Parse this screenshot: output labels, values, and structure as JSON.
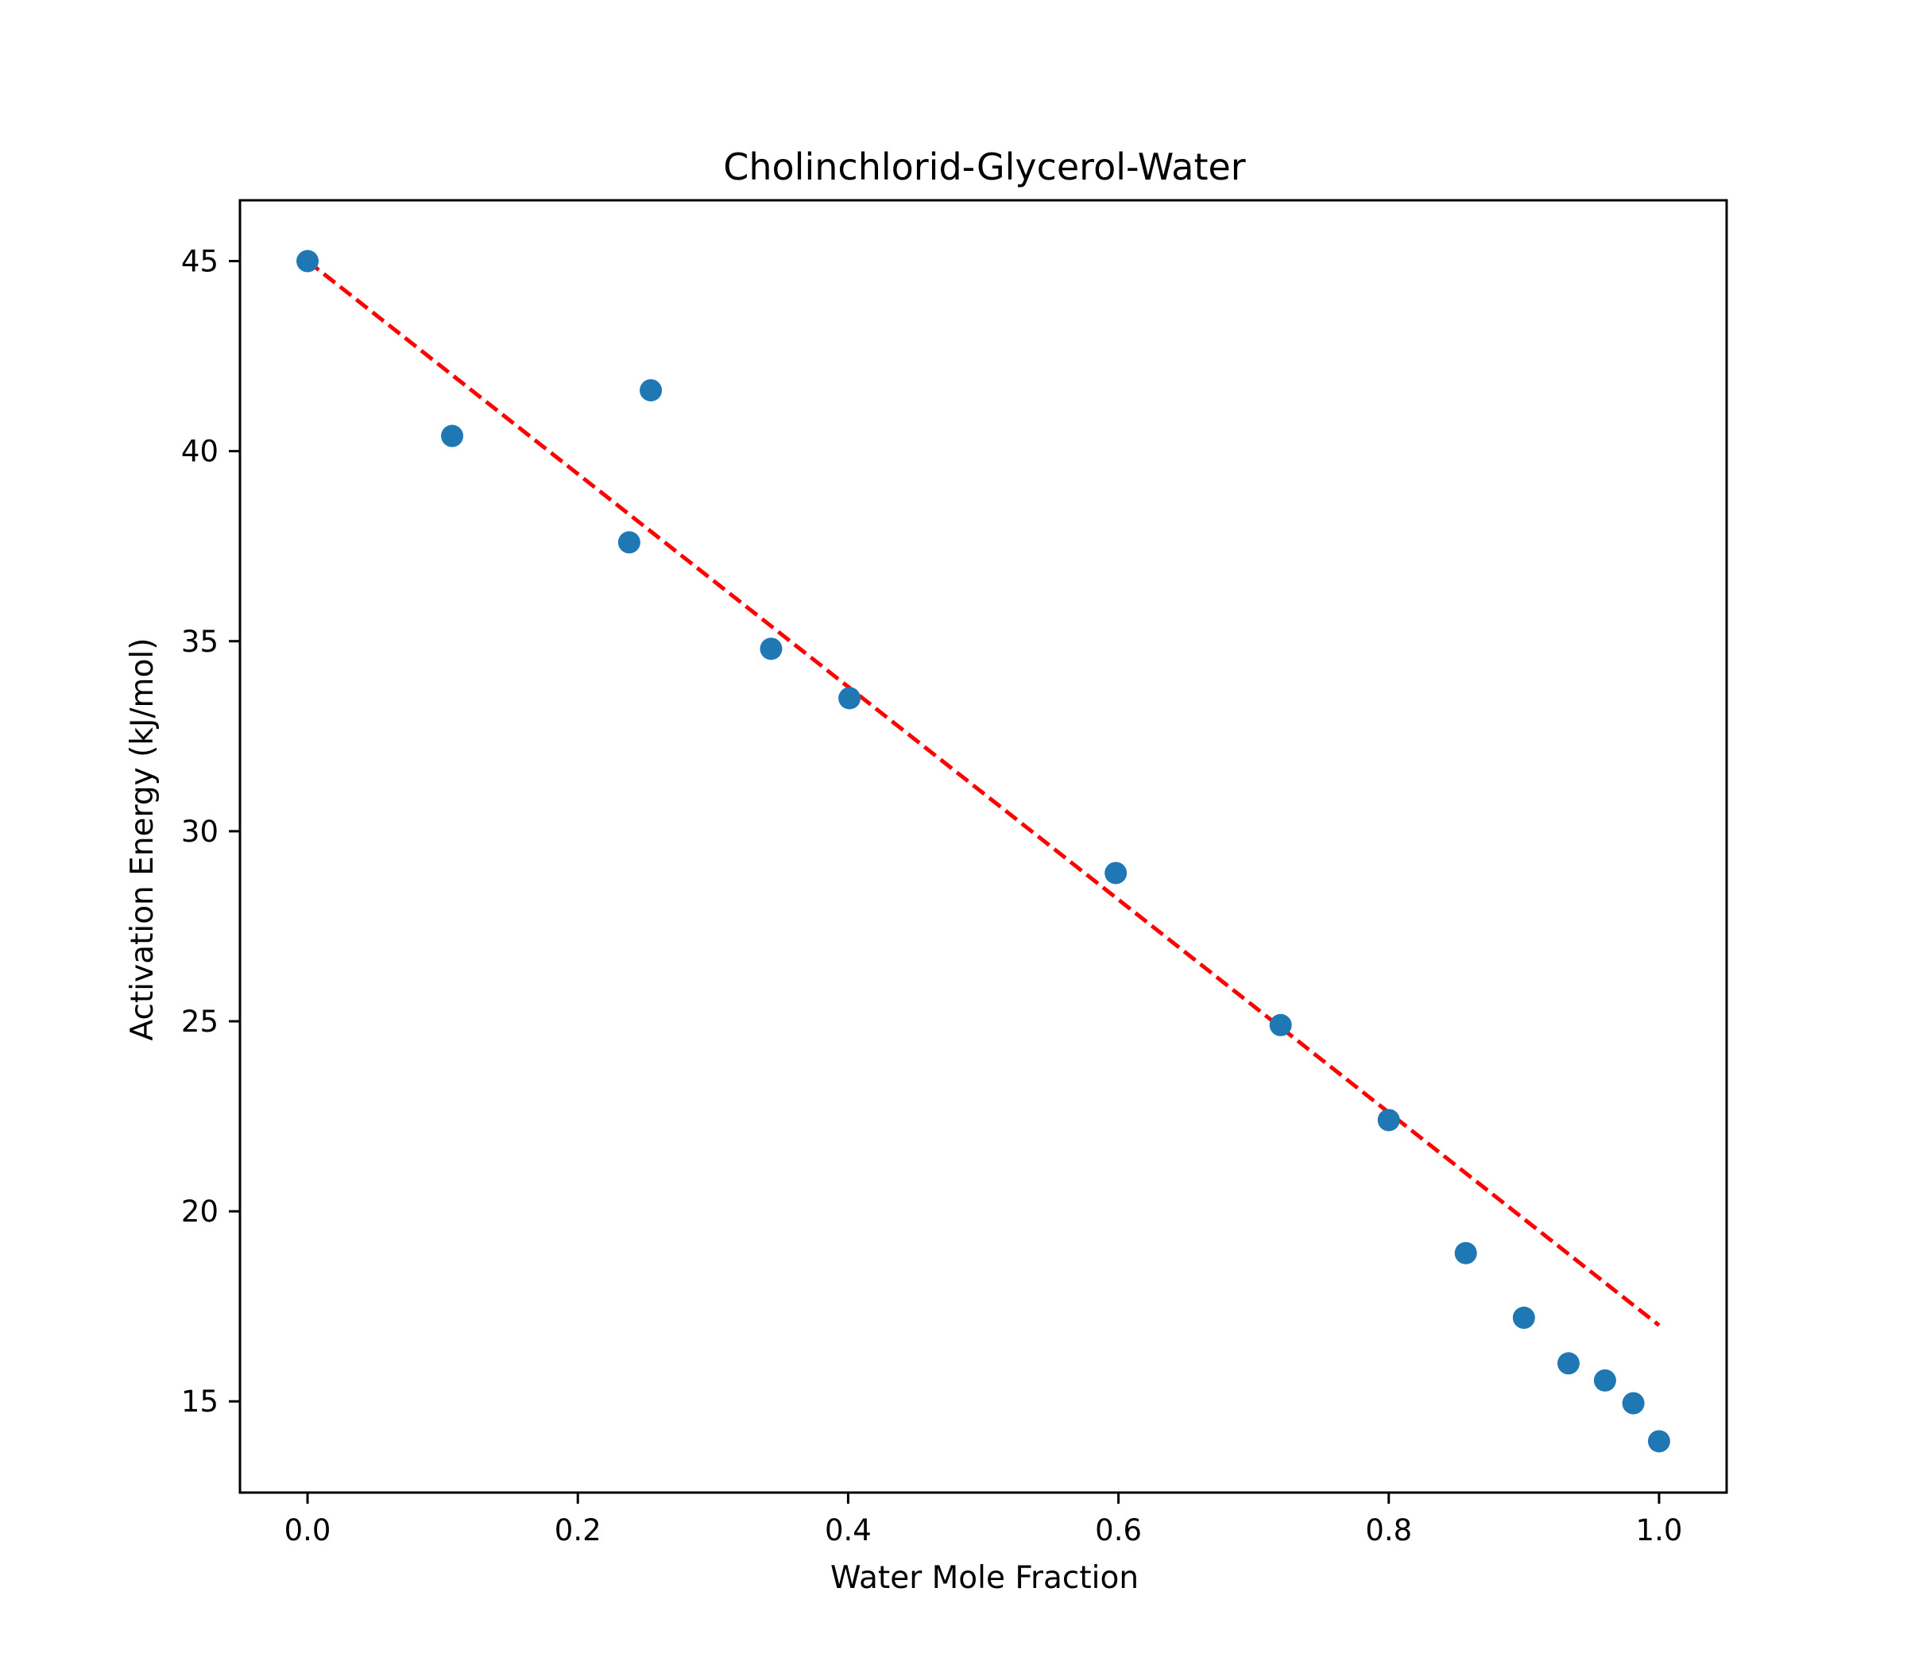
{
  "chart_data": {
    "type": "scatter",
    "title": "Cholinchlorid-Glycerol-Water",
    "xlabel": "Water Mole Fraction",
    "ylabel": "Activation Energy (kJ/mol)",
    "xlim": [
      -0.05,
      1.05
    ],
    "ylim": [
      12.6,
      46.6
    ],
    "xticks": [
      0.0,
      0.2,
      0.4,
      0.6,
      0.8,
      1.0
    ],
    "xtick_labels": [
      "0.0",
      "0.2",
      "0.4",
      "0.6",
      "0.8",
      "1.0"
    ],
    "yticks": [
      15,
      20,
      25,
      30,
      35,
      40,
      45
    ],
    "ytick_labels": [
      "15",
      "20",
      "25",
      "30",
      "35",
      "40",
      "45"
    ],
    "grid": false,
    "series": [
      {
        "marker_color": "#1f77b4",
        "x": [
          0.0,
          0.107,
          0.238,
          0.254,
          0.343,
          0.401,
          0.598,
          0.72,
          0.8,
          0.857,
          0.9,
          0.933,
          0.96,
          0.981,
          1.0
        ],
        "y": [
          45.0,
          40.4,
          37.6,
          41.6,
          34.8,
          33.5,
          28.9,
          24.9,
          22.4,
          18.9,
          17.2,
          16.0,
          15.55,
          14.95,
          13.95
        ]
      }
    ],
    "fit_line": {
      "color": "#ff0000",
      "style": "dashed",
      "x": [
        0.0,
        1.0
      ],
      "y": [
        45.0,
        17.0
      ]
    }
  }
}
